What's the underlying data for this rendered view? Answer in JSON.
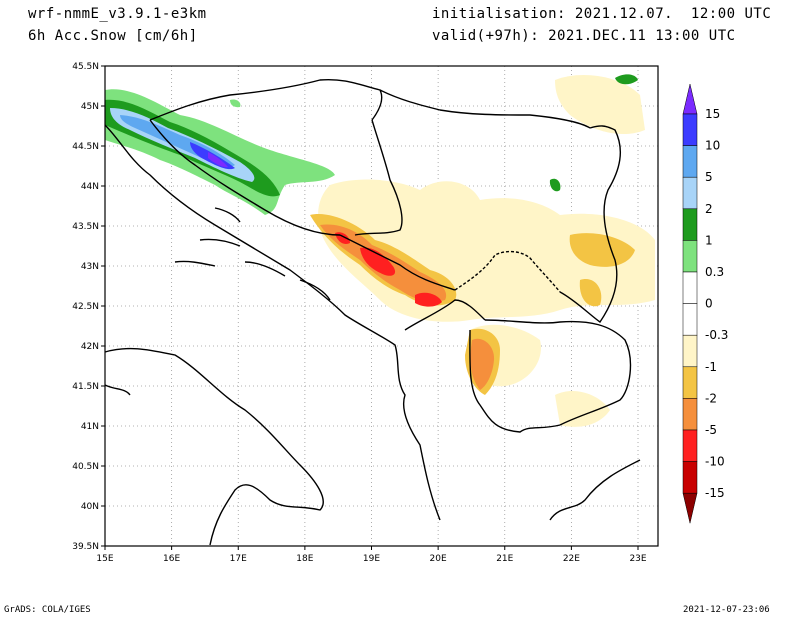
{
  "header": {
    "model": "wrf-nmmE_v3.9.1-e3km",
    "variable": "6h Acc.Snow [cm/6h]",
    "initialisation": "initialisation: 2021.12.07.  12:00 UTC",
    "valid": "valid(+97h): 2021.DEC.11 13:00 UTC"
  },
  "footer": {
    "left": "GrADS: COLA/IGES",
    "right": "2021-12-07-23:06"
  },
  "axes": {
    "lon_ticks": [
      "15E",
      "16E",
      "17E",
      "18E",
      "19E",
      "20E",
      "21E",
      "22E",
      "23E"
    ],
    "lat_ticks": [
      "45.5N",
      "45N",
      "44.5N",
      "44N",
      "43.5N",
      "43N",
      "42.5N",
      "42N",
      "41.5N",
      "41N",
      "40.5N",
      "40N",
      "39.5N"
    ],
    "lon_range": [
      15,
      23.3
    ],
    "lat_range": [
      39.5,
      45.5
    ]
  },
  "colorbar": {
    "labels": [
      "15",
      "10",
      "5",
      "2",
      "1",
      "0.3",
      "0",
      "-0.3",
      "-1",
      "-2",
      "-5",
      "-10",
      "-15"
    ],
    "colors": [
      "#7b2bff",
      "#3c3cff",
      "#5ea8f0",
      "#a8d4f8",
      "#1e9b1e",
      "#7ee27e",
      "#ffffff",
      "#ffffff",
      "#fff5c8",
      "#f3c444",
      "#f58f3c",
      "#ff2020",
      "#c80000",
      "#8c0000"
    ]
  },
  "chart_data": {
    "type": "heatmap",
    "title": "6h Acc.Snow [cm/6h]",
    "x_range": [
      15,
      23.3
    ],
    "y_range": [
      39.5,
      45.5
    ],
    "levels": [
      -15,
      -10,
      -5,
      -2,
      -1,
      -0.3,
      0,
      0.3,
      1,
      2,
      5,
      10,
      15
    ]
  }
}
